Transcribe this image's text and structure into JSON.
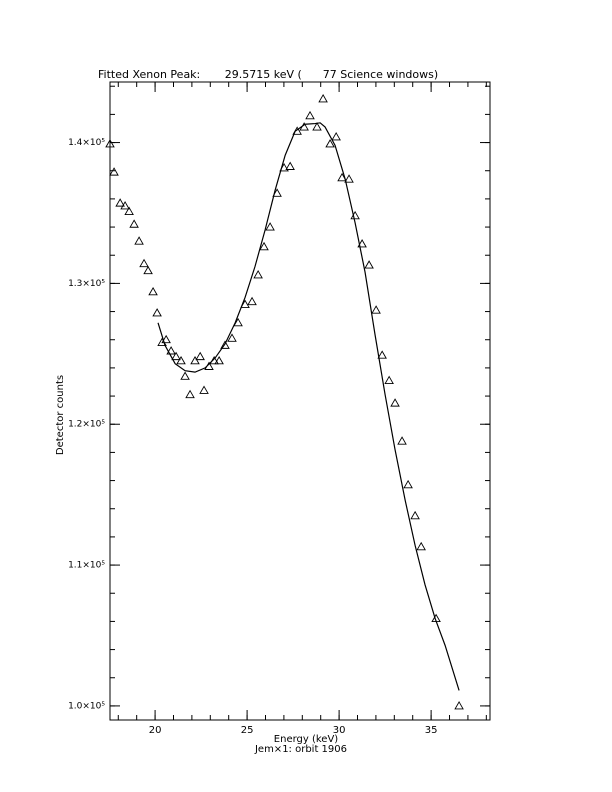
{
  "chart_data": {
    "type": "scatter",
    "title": "Fitted Xenon Peak:       29.5715 keV (      77 Science windows)",
    "x_label": "Energy (keV)",
    "subtitle": "Jem×1: orbit 1906",
    "y_label": "Detector counts",
    "xlim": [
      17.55,
      38.2
    ],
    "ylim": [
      99000,
      144300
    ],
    "xticks": [
      20,
      25,
      30,
      35
    ],
    "yticks": [
      {
        "value": 100000,
        "label": "1.0×10⁵"
      },
      {
        "value": 110000,
        "label": "1.1×10⁵"
      },
      {
        "value": 120000,
        "label": "1.2×10⁵"
      },
      {
        "value": 130000,
        "label": "1.3×10⁵"
      },
      {
        "value": 140000,
        "label": "1.4×10⁵"
      }
    ],
    "minor_ticks": 5,
    "series": [
      {
        "style": "triangle",
        "color": "#000000",
        "x": [
          17.55,
          17.77,
          18.1,
          18.37,
          18.59,
          18.86,
          19.13,
          19.4,
          19.62,
          19.89,
          20.11,
          20.38,
          20.6,
          20.87,
          21.14,
          21.41,
          21.63,
          21.9,
          22.17,
          22.45,
          22.66,
          22.93,
          23.21,
          23.48,
          23.8,
          24.18,
          24.51,
          24.89,
          25.27,
          25.6,
          25.92,
          26.25,
          26.63,
          27.01,
          27.34,
          27.72,
          28.1,
          28.42,
          28.8,
          29.13,
          29.51,
          29.84,
          30.16,
          30.54,
          30.87,
          31.25,
          31.63,
          32.01,
          32.34,
          32.72,
          33.04,
          33.42,
          33.75,
          34.13,
          34.46,
          35.27,
          36.52
        ],
        "values": [
          139900,
          137900,
          135700,
          135500,
          135100,
          134200,
          133000,
          131400,
          130900,
          129400,
          127900,
          125800,
          126000,
          125200,
          124800,
          124500,
          123400,
          122100,
          124500,
          124800,
          122400,
          124100,
          124500,
          124500,
          125600,
          126100,
          127200,
          128500,
          128700,
          130600,
          132600,
          134000,
          136400,
          138200,
          138300,
          140800,
          141100,
          141900,
          141100,
          143100,
          139900,
          140400,
          137500,
          137400,
          134800,
          132800,
          131300,
          128100,
          124900,
          123100,
          121500,
          118800,
          115700,
          113500,
          111300,
          106200,
          100000
        ]
      },
      {
        "style": "line",
        "color": "#000000",
        "x": [
          20.16,
          20.54,
          21.09,
          21.63,
          22.17,
          22.72,
          23.26,
          23.8,
          24.35,
          24.89,
          25.43,
          25.98,
          26.52,
          27.07,
          27.61,
          28.15,
          28.7,
          28.97,
          29.24,
          29.78,
          30.33,
          30.87,
          31.41,
          31.96,
          32.5,
          33.04,
          33.59,
          34.13,
          34.67,
          35.22,
          35.76,
          36.52
        ],
        "values": [
          127200,
          125600,
          124300,
          123800,
          123700,
          124000,
          124700,
          125700,
          127200,
          129000,
          131200,
          133800,
          136600,
          139100,
          140800,
          141300,
          141350,
          141400,
          141100,
          139800,
          137400,
          134300,
          130800,
          126300,
          122100,
          118200,
          114600,
          111400,
          108600,
          106200,
          104300,
          101100
        ]
      }
    ]
  }
}
